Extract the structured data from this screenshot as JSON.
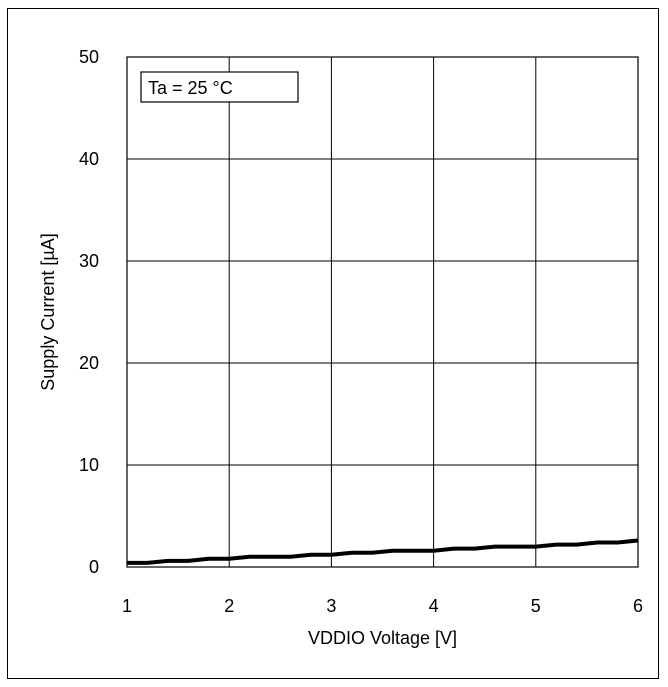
{
  "chart_data": {
    "type": "line",
    "xlabel": "VDDIO Voltage [V]",
    "ylabel": "Supply Current [µA]",
    "xlim": [
      1,
      6
    ],
    "ylim": [
      0,
      50
    ],
    "x_ticks": [
      1,
      2,
      3,
      4,
      5,
      6
    ],
    "y_ticks": [
      0,
      10,
      20,
      30,
      40,
      50
    ],
    "grid": true,
    "annotation": "Ta = 25 °C",
    "series": [
      {
        "color": "#000000",
        "x": [
          1.0,
          1.2,
          1.4,
          1.6,
          1.8,
          2.0,
          2.2,
          2.4,
          2.6,
          2.8,
          3.0,
          3.2,
          3.4,
          3.6,
          3.8,
          4.0,
          4.2,
          4.4,
          4.6,
          4.8,
          5.0,
          5.2,
          5.4,
          5.6,
          5.8,
          6.0
        ],
        "y": [
          0.4,
          0.4,
          0.6,
          0.6,
          0.8,
          0.8,
          1.0,
          1.0,
          1.0,
          1.2,
          1.2,
          1.4,
          1.4,
          1.6,
          1.6,
          1.6,
          1.8,
          1.8,
          2.0,
          2.0,
          2.0,
          2.2,
          2.2,
          2.4,
          2.4,
          2.6
        ]
      }
    ]
  }
}
